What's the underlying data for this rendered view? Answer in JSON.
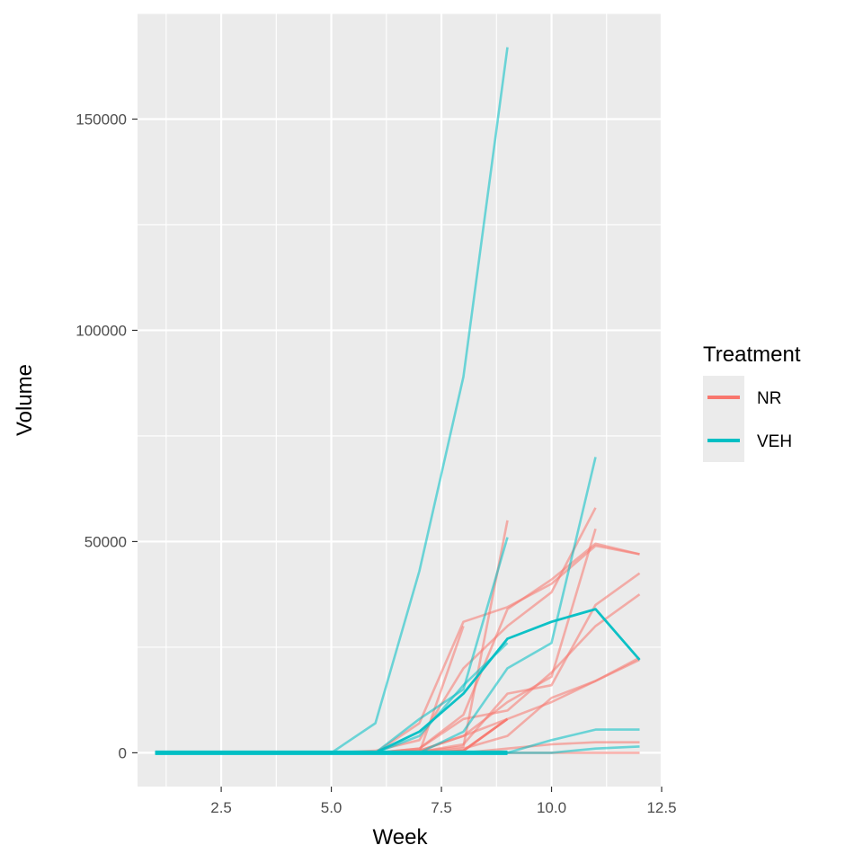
{
  "chart_data": {
    "type": "line",
    "title": "",
    "xlabel": "Week",
    "ylabel": "Volume",
    "xlim": [
      0.6,
      12.5
    ],
    "ylim": [
      -8000,
      175000
    ],
    "x_ticks": [
      2.5,
      5.0,
      7.5,
      10.0,
      12.5
    ],
    "x_tick_labels": [
      "2.5",
      "5.0",
      "7.5",
      "10.0",
      "12.5"
    ],
    "y_ticks": [
      0,
      50000,
      100000,
      150000
    ],
    "y_tick_labels": [
      "0",
      "50000",
      "100000",
      "150000"
    ],
    "grid": true,
    "legend": {
      "title": "Treatment",
      "position": "right",
      "entries": [
        {
          "name": "NR",
          "color": "#F8766D"
        },
        {
          "name": "VEH",
          "color": "#00BFC4"
        }
      ]
    },
    "colors": {
      "NR": "#F8766D",
      "VEH": "#00BFC4",
      "panel": "#EBEBEB",
      "grid": "#FFFFFF"
    },
    "series": [
      {
        "group": "NR",
        "kind": "individual",
        "x": [
          1,
          2,
          3,
          4,
          5,
          6,
          7,
          8,
          9
        ],
        "y": [
          0,
          0,
          0,
          0,
          0,
          0,
          300,
          1500,
          55000
        ]
      },
      {
        "group": "NR",
        "kind": "individual",
        "x": [
          1,
          2,
          3,
          4,
          5,
          6,
          7,
          8,
          9,
          10,
          11,
          12
        ],
        "y": [
          0,
          0,
          0,
          0,
          0,
          0,
          1000,
          9000,
          34000,
          41000,
          49500,
          47000
        ]
      },
      {
        "group": "NR",
        "kind": "individual",
        "x": [
          1,
          2,
          3,
          4,
          5,
          6,
          7,
          8,
          9,
          10,
          11,
          12
        ],
        "y": [
          0,
          0,
          0,
          0,
          0,
          0,
          7000,
          31000,
          34500,
          40000,
          49000,
          47000
        ]
      },
      {
        "group": "NR",
        "kind": "individual",
        "x": [
          1,
          2,
          3,
          4,
          5,
          6,
          7,
          8,
          9,
          10,
          11,
          12
        ],
        "y": [
          0,
          0,
          0,
          0,
          0,
          500,
          3000,
          20000,
          30000,
          38000,
          58000,
          null
        ]
      },
      {
        "group": "NR",
        "kind": "individual",
        "x": [
          1,
          2,
          3,
          4,
          5,
          6,
          7,
          8,
          9,
          10,
          11,
          12
        ],
        "y": [
          0,
          0,
          0,
          0,
          0,
          0,
          500,
          4000,
          12000,
          18000,
          53000,
          null
        ]
      },
      {
        "group": "NR",
        "kind": "individual",
        "x": [
          1,
          2,
          3,
          4,
          5,
          6,
          7,
          8,
          9,
          10,
          11,
          12
        ],
        "y": [
          0,
          0,
          0,
          0,
          0,
          0,
          200,
          2000,
          14000,
          16000,
          35000,
          42500
        ]
      },
      {
        "group": "NR",
        "kind": "individual",
        "x": [
          1,
          2,
          3,
          4,
          5,
          6,
          7,
          8,
          9,
          10,
          11,
          12
        ],
        "y": [
          0,
          0,
          0,
          0,
          0,
          0,
          1000,
          8000,
          10000,
          19000,
          30000,
          37500
        ]
      },
      {
        "group": "NR",
        "kind": "individual",
        "x": [
          1,
          2,
          3,
          4,
          5,
          6,
          7,
          8,
          9,
          10,
          11,
          12
        ],
        "y": [
          0,
          0,
          0,
          0,
          0,
          0,
          500,
          4000,
          8000,
          12000,
          17000,
          22500
        ]
      },
      {
        "group": "NR",
        "kind": "individual",
        "x": [
          1,
          2,
          3,
          4,
          5,
          6,
          7,
          8,
          9,
          10,
          11,
          12
        ],
        "y": [
          0,
          0,
          0,
          0,
          0,
          0,
          0,
          1000,
          4000,
          13000,
          17000,
          22000
        ]
      },
      {
        "group": "NR",
        "kind": "individual",
        "x": [
          1,
          2,
          3,
          4,
          5,
          6,
          7,
          8,
          9,
          10,
          11,
          12
        ],
        "y": [
          0,
          0,
          0,
          0,
          0,
          0,
          0,
          0,
          1000,
          2000,
          2500,
          2500
        ]
      },
      {
        "group": "NR",
        "kind": "individual",
        "x": [
          1,
          2,
          3,
          4,
          5,
          6,
          7,
          8,
          9,
          10,
          11,
          12
        ],
        "y": [
          0,
          0,
          0,
          0,
          0,
          0,
          0,
          0,
          0,
          0,
          0,
          0
        ]
      },
      {
        "group": "NR",
        "kind": "individual",
        "x": [
          1,
          2,
          3,
          4,
          5,
          6,
          7,
          8
        ],
        "y": [
          0,
          0,
          0,
          0,
          0,
          0,
          0,
          30000
        ]
      },
      {
        "group": "VEH",
        "kind": "individual",
        "x": [
          1,
          2,
          3,
          4,
          5,
          6,
          7,
          8,
          9
        ],
        "y": [
          0,
          0,
          0,
          0,
          0,
          7000,
          43000,
          89000,
          167000
        ]
      },
      {
        "group": "VEH",
        "kind": "individual",
        "x": [
          1,
          2,
          3,
          4,
          5,
          6,
          7,
          8,
          9
        ],
        "y": [
          0,
          0,
          0,
          0,
          0,
          0,
          8000,
          15000,
          51000
        ]
      },
      {
        "group": "VEH",
        "kind": "individual",
        "x": [
          1,
          2,
          3,
          4,
          5,
          6,
          7,
          8,
          9,
          10,
          11
        ],
        "y": [
          0,
          0,
          0,
          0,
          0,
          0,
          0,
          5000,
          20000,
          26000,
          70000
        ]
      },
      {
        "group": "VEH",
        "kind": "individual",
        "x": [
          1,
          2,
          3,
          4,
          5,
          6,
          7,
          8,
          9
        ],
        "y": [
          0,
          0,
          0,
          0,
          0,
          0,
          4000,
          16000,
          26000
        ]
      },
      {
        "group": "VEH",
        "kind": "individual",
        "x": [
          1,
          2,
          3,
          4,
          5,
          6,
          7,
          8,
          9,
          10,
          11,
          12
        ],
        "y": [
          0,
          0,
          0,
          0,
          0,
          0,
          0,
          0,
          0,
          3000,
          5500,
          5500
        ]
      },
      {
        "group": "VEH",
        "kind": "individual",
        "x": [
          1,
          2,
          3,
          4,
          5,
          6,
          7,
          8,
          9,
          10,
          11,
          12
        ],
        "y": [
          0,
          0,
          0,
          0,
          0,
          0,
          0,
          0,
          0,
          0,
          1000,
          1500
        ]
      },
      {
        "group": "NR",
        "kind": "mean",
        "x": [
          1,
          2,
          3,
          4,
          5,
          6,
          7,
          8,
          9
        ],
        "y": [
          0,
          0,
          0,
          0,
          0,
          0,
          0,
          500,
          8000
        ]
      },
      {
        "group": "VEH",
        "kind": "mean",
        "x": [
          1,
          2,
          3,
          4,
          5,
          6,
          7,
          8,
          9,
          10,
          11,
          12
        ],
        "y": [
          0,
          0,
          0,
          0,
          0,
          0,
          5000,
          14000,
          27000,
          31000,
          34000,
          22000
        ]
      },
      {
        "group": "VEH",
        "kind": "mean_bold",
        "x": [
          1,
          2,
          3,
          4,
          5,
          6,
          7,
          8,
          9
        ],
        "y": [
          0,
          0,
          0,
          0,
          0,
          0,
          0,
          0,
          0
        ]
      }
    ]
  }
}
